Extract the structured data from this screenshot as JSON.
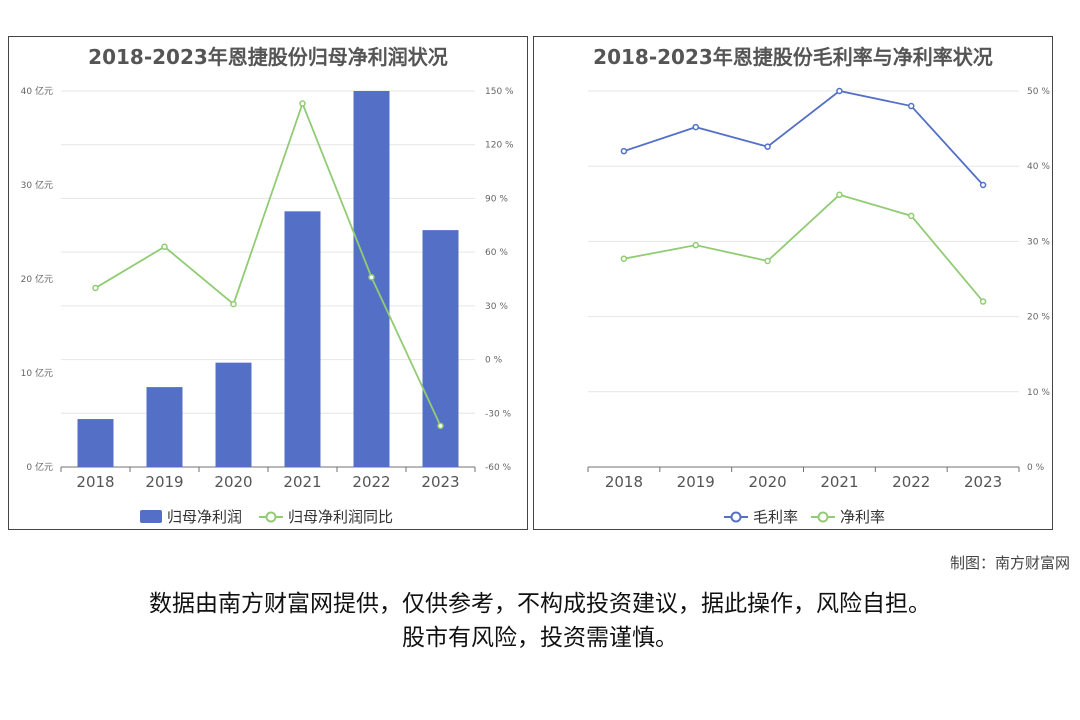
{
  "credit": "制图：南方财富网",
  "disclaimer": {
    "line1": "数据由南方财富网提供，仅供参考，不构成投资建议，据此操作，风险自担。",
    "line2": "股市有风险，投资需谨慎。"
  },
  "colors": {
    "bar": "#5470c6",
    "green": "#91cc75",
    "blue_line": "#5470c6"
  },
  "chart_data": [
    {
      "type": "bar",
      "title": "2018-2023年恩捷股份归母净利润状况",
      "categories": [
        "2018",
        "2019",
        "2020",
        "2021",
        "2022",
        "2023"
      ],
      "left_axis": {
        "ticks": [
          "0 亿元",
          "10 亿元",
          "20 亿元",
          "30 亿元",
          "40 亿元"
        ],
        "ylim": [
          0,
          40
        ]
      },
      "right_axis": {
        "ticks": [
          "-60 %",
          "-30 %",
          "0 %",
          "30 %",
          "60 %",
          "90 %",
          "120 %",
          "150 %"
        ],
        "ylim": [
          -60,
          150
        ]
      },
      "series": [
        {
          "name": "归母净利润",
          "type": "bar",
          "axis": "left",
          "values": [
            5.1,
            8.5,
            11.1,
            27.2,
            40.0,
            25.2
          ]
        },
        {
          "name": "归母净利润同比",
          "type": "line",
          "axis": "right",
          "values": [
            40,
            63,
            31,
            143,
            46,
            -37
          ]
        }
      ]
    },
    {
      "type": "line",
      "title": "2018-2023年恩捷股份毛利率与净利率状况",
      "categories": [
        "2018",
        "2019",
        "2020",
        "2021",
        "2022",
        "2023"
      ],
      "right_axis": {
        "ticks": [
          "0 %",
          "10 %",
          "20 %",
          "30 %",
          "40 %",
          "50 %"
        ],
        "ylim": [
          0,
          50
        ]
      },
      "series": [
        {
          "name": "毛利率",
          "values": [
            42.0,
            45.2,
            42.6,
            50.0,
            48.0,
            37.5
          ]
        },
        {
          "name": "净利率",
          "values": [
            27.7,
            29.5,
            27.4,
            36.2,
            33.4,
            22.0
          ]
        }
      ]
    }
  ]
}
